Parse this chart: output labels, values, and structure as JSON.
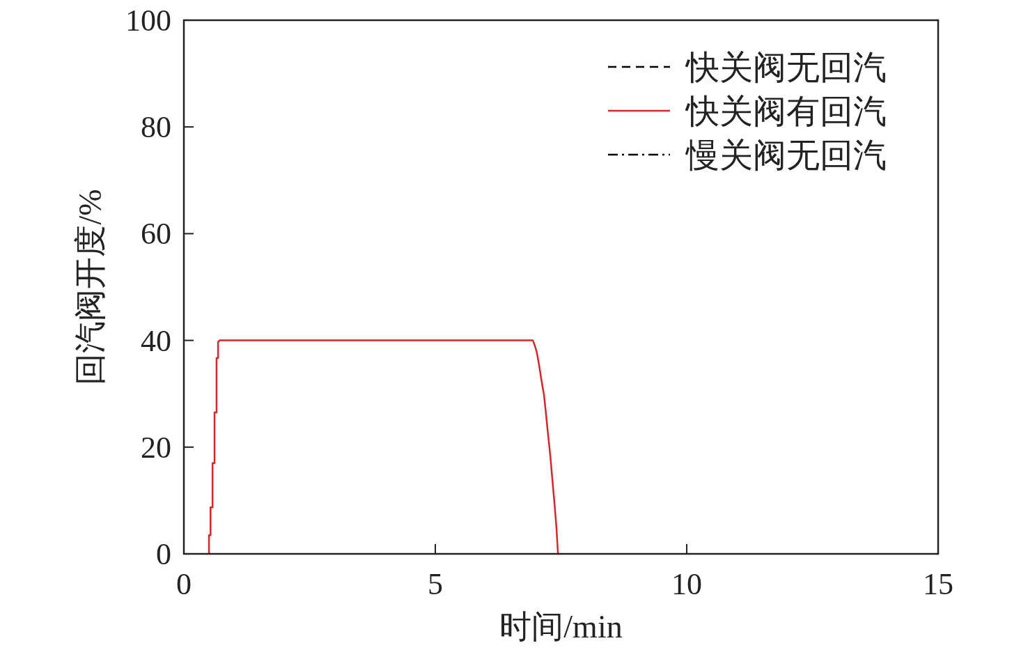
{
  "chart_data": {
    "type": "line",
    "xlabel": "时间/min",
    "ylabel": "回汽阀开度/%",
    "xlim": [
      0,
      15
    ],
    "ylim": [
      0,
      100
    ],
    "xticks": [
      0,
      5,
      10,
      15
    ],
    "yticks": [
      0,
      20,
      40,
      60,
      80,
      100
    ],
    "legend": "top right",
    "grid": false,
    "series": [
      {
        "name": "快关阀无回汽",
        "color": "#000000",
        "line_style": "dashed"
      },
      {
        "name": "快关阀有回汽",
        "color": "#d62728",
        "line_style": "solid",
        "x": [
          0.5,
          0.5,
          0.53,
          0.53,
          0.57,
          0.57,
          0.61,
          0.61,
          0.65,
          0.65,
          0.68,
          0.68,
          0.71,
          6.94,
          6.98,
          7.02,
          7.06,
          7.11,
          7.16,
          7.2,
          7.24,
          7.29,
          7.33,
          7.37,
          7.41,
          7.44
        ],
        "values": [
          0,
          3.5,
          3.5,
          8.7,
          8.7,
          17,
          17,
          26.5,
          26.5,
          36.7,
          36.7,
          39.7,
          40,
          40,
          39,
          37.7,
          35.6,
          32.6,
          29.9,
          26.4,
          22.6,
          18.1,
          13.7,
          9.5,
          4.8,
          0
        ]
      },
      {
        "name": "慢关阀无回汽",
        "color": "#000000",
        "line_style": "dashdot"
      }
    ]
  }
}
